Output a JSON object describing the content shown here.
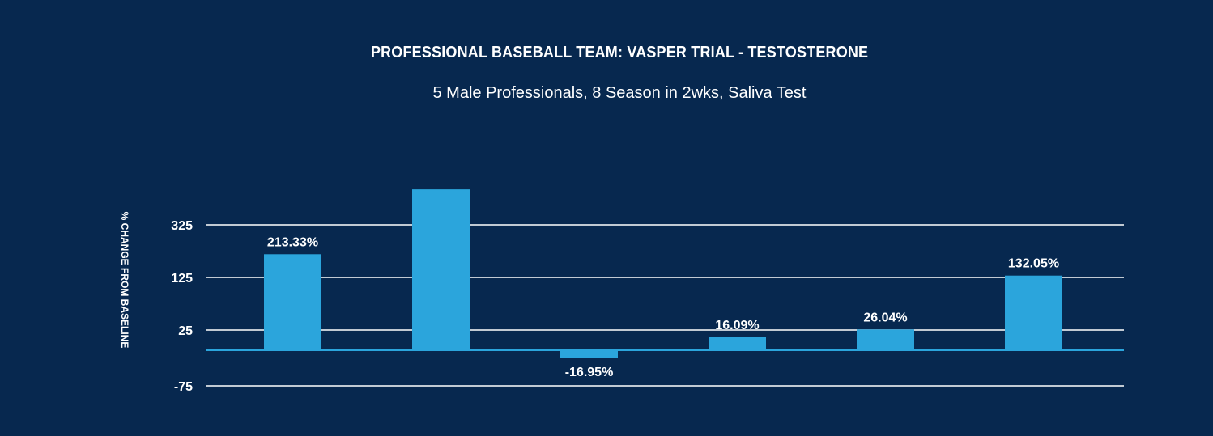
{
  "chart_data": {
    "type": "bar",
    "title": "PROFESSIONAL BASEBALL TEAM: VASPER TRIAL - TESTOSTERONE",
    "subtitle": "5 Male Professionals, 8 Season in 2wks, Saliva Test",
    "ylabel": "% CHANGE FROM BASELINE",
    "xlabel": "",
    "categories": [
      "",
      "",
      "",
      "",
      "",
      ""
    ],
    "values": [
      213.33,
      460,
      -16.95,
      16.09,
      26.04,
      132.05
    ],
    "data_labels": [
      "213.33%",
      "",
      "-16.95%",
      "16.09%",
      "26.04%",
      "132.05%"
    ],
    "yticks": [
      325,
      125,
      25,
      -75
    ],
    "grid": true,
    "legend": "none",
    "colors": {
      "background": "#07284f",
      "bar": "#2ba5dc",
      "grid": "#ffffff",
      "baseline": "#2ba5dc"
    }
  }
}
